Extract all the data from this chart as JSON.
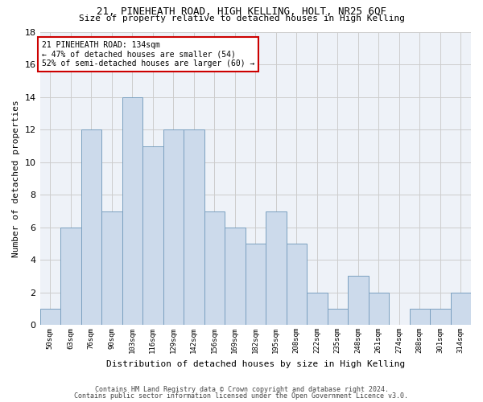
{
  "title1": "21, PINEHEATH ROAD, HIGH KELLING, HOLT, NR25 6QF",
  "title2": "Size of property relative to detached houses in High Kelling",
  "xlabel": "Distribution of detached houses by size in High Kelling",
  "ylabel": "Number of detached properties",
  "bar_labels": [
    "50sqm",
    "63sqm",
    "76sqm",
    "90sqm",
    "103sqm",
    "116sqm",
    "129sqm",
    "142sqm",
    "156sqm",
    "169sqm",
    "182sqm",
    "195sqm",
    "208sqm",
    "222sqm",
    "235sqm",
    "248sqm",
    "261sqm",
    "274sqm",
    "288sqm",
    "301sqm",
    "314sqm"
  ],
  "bar_values": [
    1,
    6,
    12,
    7,
    14,
    11,
    12,
    12,
    7,
    6,
    5,
    7,
    5,
    2,
    1,
    3,
    2,
    0,
    1,
    1,
    2
  ],
  "bar_color": "#ccdaeb",
  "bar_edge_color": "#7aa0c0",
  "annotation_title": "21 PINEHEATH ROAD: 134sqm",
  "annotation_line1": "← 47% of detached houses are smaller (54)",
  "annotation_line2": "52% of semi-detached houses are larger (60) →",
  "annotation_box_facecolor": "#ffffff",
  "annotation_box_edgecolor": "#cc0000",
  "ylim": [
    0,
    18
  ],
  "yticks": [
    0,
    2,
    4,
    6,
    8,
    10,
    12,
    14,
    16,
    18
  ],
  "grid_color": "#cccccc",
  "bg_color": "#eef2f8",
  "fig_facecolor": "#ffffff",
  "footer1": "Contains HM Land Registry data © Crown copyright and database right 2024.",
  "footer2": "Contains public sector information licensed under the Open Government Licence v3.0."
}
